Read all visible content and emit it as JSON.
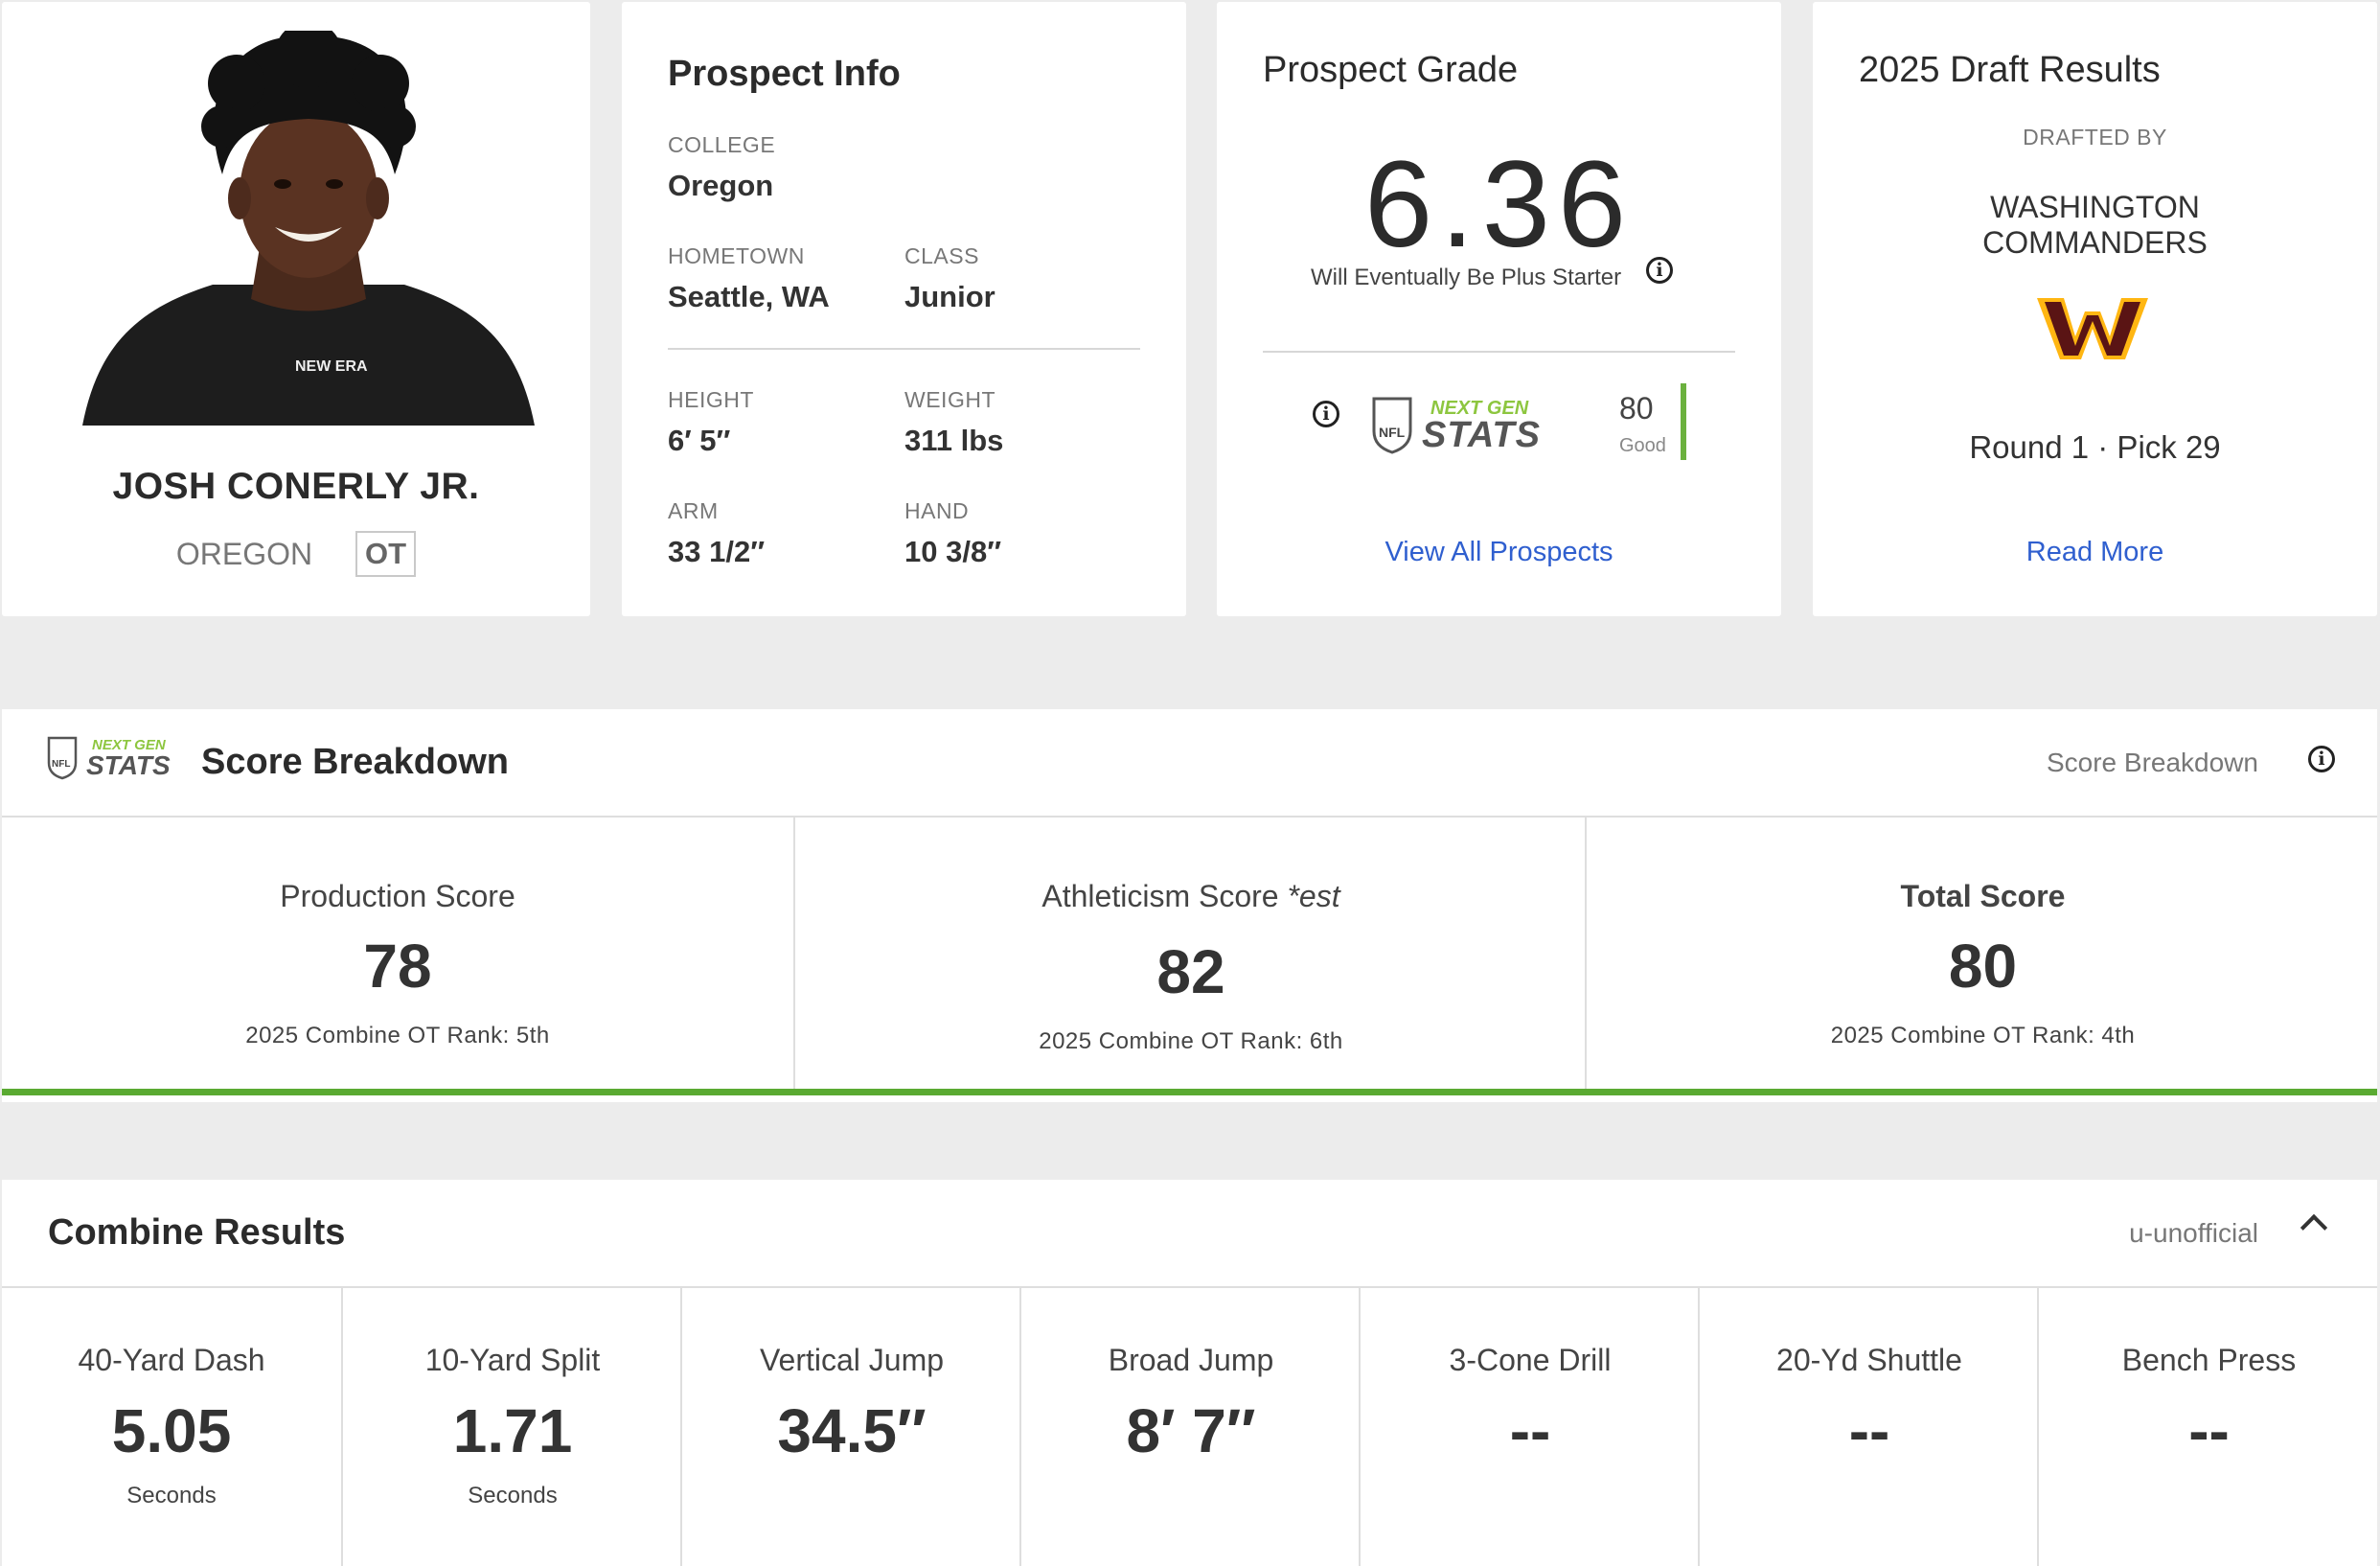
{
  "player": {
    "name": "JOSH CONERLY JR.",
    "school": "OREGON",
    "position": "OT",
    "shirt_brand": "NEW ERA"
  },
  "prospect_info": {
    "title": "Prospect Info",
    "college_label": "COLLEGE",
    "college": "Oregon",
    "hometown_label": "HOMETOWN",
    "hometown": "Seattle, WA",
    "class_label": "CLASS",
    "class": "Junior",
    "height_label": "HEIGHT",
    "height": "6′ 5″",
    "weight_label": "WEIGHT",
    "weight": "311 lbs",
    "arm_label": "ARM",
    "arm": "33 1/2″",
    "hand_label": "HAND",
    "hand": "10 3/8″"
  },
  "prospect_grade": {
    "title": "Prospect Grade",
    "grade": "6.36",
    "description": "Will Eventually Be Plus Starter",
    "ngs_logo_top": "NEXT GEN",
    "ngs_logo_bottom": "STATS",
    "nfl_shield": "NFL",
    "ngs_score": "80",
    "ngs_score_label": "Good",
    "link": "View All Prospects"
  },
  "draft_results": {
    "title": "2025 Draft Results",
    "drafted_by_label": "DRAFTED BY",
    "team_line1": "WASHINGTON",
    "team_line2": "COMMANDERS",
    "pick": "Round 1 · Pick 29",
    "link": "Read More"
  },
  "score_breakdown": {
    "title": "Score Breakdown",
    "header_right": "Score Breakdown",
    "cells": [
      {
        "label": "Production Score",
        "est": "",
        "value": "78",
        "rank": "2025 Combine OT Rank: 5th"
      },
      {
        "label": "Athleticism Score ",
        "est": "*est",
        "value": "82",
        "rank": "2025 Combine OT Rank: 6th"
      },
      {
        "label": "Total Score",
        "est": "",
        "value": "80",
        "rank": "2025 Combine OT Rank: 4th"
      }
    ]
  },
  "combine_results": {
    "title": "Combine Results",
    "header_right": "u-unofficial",
    "cells": [
      {
        "label": "40-Yard Dash",
        "value": "5.05",
        "unit": "Seconds"
      },
      {
        "label": "10-Yard Split",
        "value": "1.71",
        "unit": "Seconds"
      },
      {
        "label": "Vertical Jump",
        "value": "34.5″",
        "unit": ""
      },
      {
        "label": "Broad Jump",
        "value": "8′ 7″",
        "unit": ""
      },
      {
        "label": "3-Cone Drill",
        "value": "--",
        "unit": ""
      },
      {
        "label": "20-Yd Shuttle",
        "value": "--",
        "unit": ""
      },
      {
        "label": "Bench Press",
        "value": "--",
        "unit": ""
      }
    ]
  },
  "colors": {
    "ngs_green": "#8dc63f",
    "bar_green": "#5aaa32",
    "link_blue": "#2f5fcf",
    "commanders_burgundy": "#5a1414",
    "commanders_gold": "#ffb612"
  }
}
